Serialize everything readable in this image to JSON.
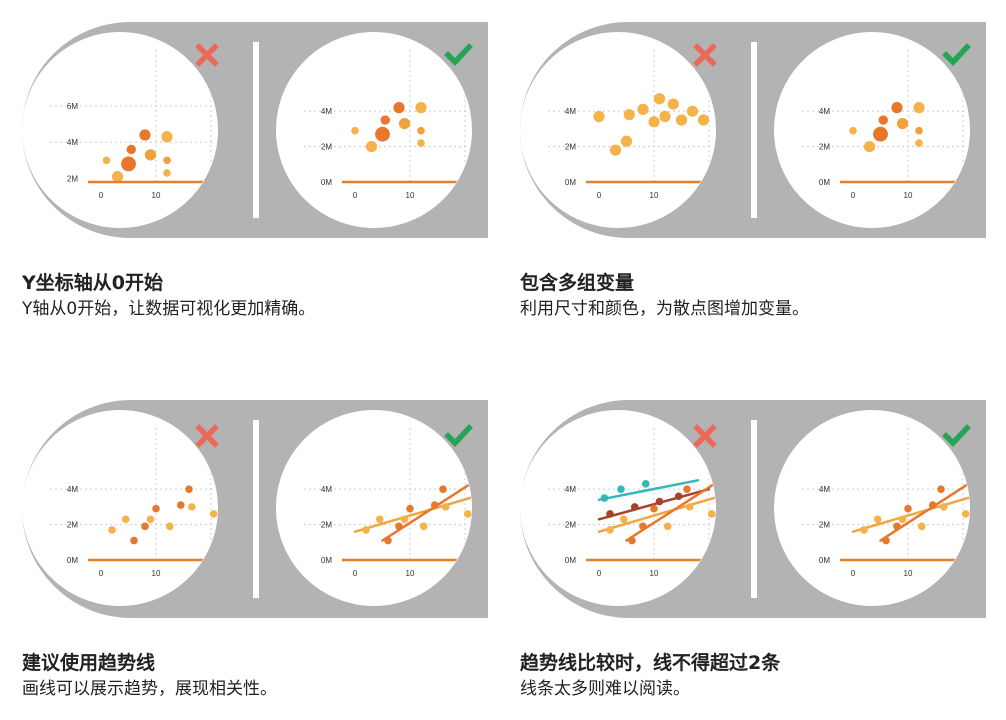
{
  "colors": {
    "frame": "#b3b3b3",
    "wrong": "#ea6a5a",
    "right": "#24a455",
    "axis": "#e57f29",
    "dotOrange": "#e8772c",
    "dotYellow": "#f2a03a",
    "dotLight": "#f4b24a",
    "lineOrange": "#e8772c",
    "lineLight": "#f2a53e",
    "lineDark": "#a8432a",
    "lineTeal": "#32b8b8",
    "grid": "#cccccc",
    "text": "#222222",
    "tick": "#333333"
  },
  "icons": {
    "wrong": "cross-icon",
    "right": "check-icon"
  },
  "panels": [
    {
      "title": "Y坐标轴从0开始",
      "desc": "Y轴从0开始，让数据可视化更加精确。",
      "left": {
        "mark": "wrong",
        "chart_data": {
          "type": "scatter",
          "ylim": [
            1.8,
            6.5
          ],
          "yticks": [
            {
              "v": 2,
              "label": "2M"
            },
            {
              "v": 4,
              "label": "4M"
            },
            {
              "v": 6,
              "label": "6M"
            }
          ],
          "xticks": [
            {
              "v": 0,
              "label": "0"
            },
            {
              "v": 10,
              "label": "10"
            }
          ],
          "points": [
            {
              "x": 1,
              "y": 3.0,
              "size": 2,
              "color": "dotLight"
            },
            {
              "x": 3,
              "y": 2.1,
              "size": 4,
              "color": "dotLight"
            },
            {
              "x": 5,
              "y": 2.8,
              "size": 6,
              "color": "dotOrange"
            },
            {
              "x": 5.5,
              "y": 3.6,
              "size": 3,
              "color": "dotOrange"
            },
            {
              "x": 8,
              "y": 4.4,
              "size": 4,
              "color": "dotOrange"
            },
            {
              "x": 9,
              "y": 3.3,
              "size": 4,
              "color": "dotYellow"
            },
            {
              "x": 12,
              "y": 4.3,
              "size": 4,
              "color": "dotLight"
            },
            {
              "x": 12,
              "y": 3.0,
              "size": 2,
              "color": "dotYellow"
            },
            {
              "x": 12,
              "y": 2.3,
              "size": 2,
              "color": "dotLight"
            }
          ],
          "lines": []
        }
      },
      "right": {
        "mark": "right",
        "chart_data": {
          "type": "scatter",
          "ylim": [
            0,
            4.8
          ],
          "yticks": [
            {
              "v": 0,
              "label": "0M"
            },
            {
              "v": 2,
              "label": "2M"
            },
            {
              "v": 4,
              "label": "4M"
            }
          ],
          "xticks": [
            {
              "v": 0,
              "label": "0"
            },
            {
              "v": 10,
              "label": "10"
            }
          ],
          "points": [
            {
              "x": 0,
              "y": 2.9,
              "size": 2,
              "color": "dotLight"
            },
            {
              "x": 3,
              "y": 2.0,
              "size": 4,
              "color": "dotLight"
            },
            {
              "x": 5,
              "y": 2.7,
              "size": 6,
              "color": "dotOrange"
            },
            {
              "x": 5.5,
              "y": 3.5,
              "size": 3,
              "color": "dotOrange"
            },
            {
              "x": 8,
              "y": 4.2,
              "size": 4,
              "color": "dotOrange"
            },
            {
              "x": 9,
              "y": 3.3,
              "size": 4,
              "color": "dotYellow"
            },
            {
              "x": 12,
              "y": 4.2,
              "size": 4,
              "color": "dotLight"
            },
            {
              "x": 12,
              "y": 2.9,
              "size": 2,
              "color": "dotYellow"
            },
            {
              "x": 12,
              "y": 2.2,
              "size": 2,
              "color": "dotLight"
            }
          ],
          "lines": []
        }
      }
    },
    {
      "title": "包含多组变量",
      "desc": "利用尺寸和颜色，为散点图增加变量。",
      "left": {
        "mark": "wrong",
        "chart_data": {
          "type": "scatter",
          "ylim": [
            0,
            4.8
          ],
          "yticks": [
            {
              "v": 0,
              "label": "0M"
            },
            {
              "v": 2,
              "label": "2M"
            },
            {
              "v": 4,
              "label": "4M"
            }
          ],
          "xticks": [
            {
              "v": 0,
              "label": "0"
            },
            {
              "v": 10,
              "label": "10"
            }
          ],
          "points": [
            {
              "x": 0,
              "y": 3.7,
              "size": 4,
              "color": "dotLight"
            },
            {
              "x": 3,
              "y": 1.8,
              "size": 4,
              "color": "dotLight"
            },
            {
              "x": 5,
              "y": 2.3,
              "size": 4,
              "color": "dotLight"
            },
            {
              "x": 5.5,
              "y": 3.8,
              "size": 4,
              "color": "dotLight"
            },
            {
              "x": 8,
              "y": 4.1,
              "size": 4,
              "color": "dotLight"
            },
            {
              "x": 10,
              "y": 3.4,
              "size": 4,
              "color": "dotLight"
            },
            {
              "x": 11,
              "y": 4.7,
              "size": 4,
              "color": "dotLight"
            },
            {
              "x": 12,
              "y": 3.7,
              "size": 4,
              "color": "dotLight"
            },
            {
              "x": 13.5,
              "y": 4.4,
              "size": 4,
              "color": "dotLight"
            },
            {
              "x": 15,
              "y": 3.5,
              "size": 4,
              "color": "dotLight"
            },
            {
              "x": 17,
              "y": 4.0,
              "size": 4,
              "color": "dotLight"
            },
            {
              "x": 19,
              "y": 3.5,
              "size": 4,
              "color": "dotLight"
            }
          ],
          "lines": []
        }
      },
      "right": {
        "mark": "right",
        "chart_data": {
          "type": "scatter",
          "ylim": [
            0,
            4.8
          ],
          "yticks": [
            {
              "v": 0,
              "label": "0M"
            },
            {
              "v": 2,
              "label": "2M"
            },
            {
              "v": 4,
              "label": "4M"
            }
          ],
          "xticks": [
            {
              "v": 0,
              "label": "0"
            },
            {
              "v": 10,
              "label": "10"
            }
          ],
          "points": [
            {
              "x": 0,
              "y": 2.9,
              "size": 2,
              "color": "dotLight"
            },
            {
              "x": 3,
              "y": 2.0,
              "size": 4,
              "color": "dotLight"
            },
            {
              "x": 5,
              "y": 2.7,
              "size": 6,
              "color": "dotOrange"
            },
            {
              "x": 5.5,
              "y": 3.5,
              "size": 3,
              "color": "dotOrange"
            },
            {
              "x": 8,
              "y": 4.2,
              "size": 4,
              "color": "dotOrange"
            },
            {
              "x": 9,
              "y": 3.3,
              "size": 4,
              "color": "dotYellow"
            },
            {
              "x": 12,
              "y": 4.2,
              "size": 4,
              "color": "dotLight"
            },
            {
              "x": 12,
              "y": 2.9,
              "size": 2,
              "color": "dotYellow"
            },
            {
              "x": 12,
              "y": 2.2,
              "size": 2,
              "color": "dotLight"
            }
          ],
          "lines": []
        }
      }
    },
    {
      "title": "建议使用趋势线",
      "desc": "画线可以展示趋势，展现相关性。",
      "left": {
        "mark": "wrong",
        "chart_data": {
          "type": "scatter",
          "ylim": [
            0,
            4.8
          ],
          "yticks": [
            {
              "v": 0,
              "label": "0M"
            },
            {
              "v": 2,
              "label": "2M"
            },
            {
              "v": 4,
              "label": "4M"
            }
          ],
          "xticks": [
            {
              "v": 0,
              "label": "0"
            },
            {
              "v": 10,
              "label": "10"
            }
          ],
          "points": [
            {
              "x": 2,
              "y": 1.7,
              "size": 2,
              "color": "dotLight"
            },
            {
              "x": 4.5,
              "y": 2.3,
              "size": 2,
              "color": "dotLight"
            },
            {
              "x": 6,
              "y": 1.1,
              "size": 2,
              "color": "dotOrange"
            },
            {
              "x": 8,
              "y": 1.9,
              "size": 2,
              "color": "dotOrange"
            },
            {
              "x": 9,
              "y": 2.3,
              "size": 2,
              "color": "dotLight"
            },
            {
              "x": 10,
              "y": 2.9,
              "size": 2,
              "color": "dotOrange"
            },
            {
              "x": 12.5,
              "y": 1.9,
              "size": 2,
              "color": "dotLight"
            },
            {
              "x": 14.5,
              "y": 3.1,
              "size": 2,
              "color": "dotOrange"
            },
            {
              "x": 16,
              "y": 4.0,
              "size": 2,
              "color": "dotOrange"
            },
            {
              "x": 16.5,
              "y": 3.0,
              "size": 2,
              "color": "dotLight"
            },
            {
              "x": 20.5,
              "y": 2.6,
              "size": 2,
              "color": "dotLight"
            }
          ],
          "lines": []
        }
      },
      "right": {
        "mark": "right",
        "chart_data": {
          "type": "scatter",
          "ylim": [
            0,
            4.8
          ],
          "yticks": [
            {
              "v": 0,
              "label": "0M"
            },
            {
              "v": 2,
              "label": "2M"
            },
            {
              "v": 4,
              "label": "4M"
            }
          ],
          "xticks": [
            {
              "v": 0,
              "label": "0"
            },
            {
              "v": 10,
              "label": "10"
            }
          ],
          "points": [
            {
              "x": 2,
              "y": 1.7,
              "size": 2,
              "color": "dotLight"
            },
            {
              "x": 4.5,
              "y": 2.3,
              "size": 2,
              "color": "dotLight"
            },
            {
              "x": 6,
              "y": 1.1,
              "size": 2,
              "color": "dotOrange"
            },
            {
              "x": 8,
              "y": 1.9,
              "size": 2,
              "color": "dotOrange"
            },
            {
              "x": 9,
              "y": 2.3,
              "size": 2,
              "color": "dotLight"
            },
            {
              "x": 10,
              "y": 2.9,
              "size": 2,
              "color": "dotOrange"
            },
            {
              "x": 12.5,
              "y": 1.9,
              "size": 2,
              "color": "dotLight"
            },
            {
              "x": 14.5,
              "y": 3.1,
              "size": 2,
              "color": "dotOrange"
            },
            {
              "x": 16,
              "y": 4.0,
              "size": 2,
              "color": "dotOrange"
            },
            {
              "x": 16.5,
              "y": 3.0,
              "size": 2,
              "color": "dotLight"
            },
            {
              "x": 20.5,
              "y": 2.6,
              "size": 2,
              "color": "dotLight"
            }
          ],
          "lines": [
            {
              "x1": 0,
              "y1": 1.6,
              "x2": 22,
              "y2": 3.6,
              "color": "lineLight"
            },
            {
              "x1": 5,
              "y1": 1.1,
              "x2": 21,
              "y2": 4.3,
              "color": "lineOrange"
            }
          ]
        }
      }
    },
    {
      "title": "趋势线比较时，线不得超过2条",
      "desc": "线条太多则难以阅读。",
      "left": {
        "mark": "wrong",
        "chart_data": {
          "type": "scatter",
          "ylim": [
            0,
            4.8
          ],
          "yticks": [
            {
              "v": 0,
              "label": "0M"
            },
            {
              "v": 2,
              "label": "2M"
            },
            {
              "v": 4,
              "label": "4M"
            }
          ],
          "xticks": [
            {
              "v": 0,
              "label": "0"
            },
            {
              "v": 10,
              "label": "10"
            }
          ],
          "points": [
            {
              "x": 1,
              "y": 3.5,
              "size": 2,
              "color": "lineTeal"
            },
            {
              "x": 4,
              "y": 4.0,
              "size": 2,
              "color": "lineTeal"
            },
            {
              "x": 8.5,
              "y": 4.3,
              "size": 2,
              "color": "lineTeal"
            },
            {
              "x": 2,
              "y": 2.6,
              "size": 2,
              "color": "lineDark"
            },
            {
              "x": 6.5,
              "y": 3.0,
              "size": 2,
              "color": "lineDark"
            },
            {
              "x": 11,
              "y": 3.3,
              "size": 2,
              "color": "lineDark"
            },
            {
              "x": 14.5,
              "y": 3.6,
              "size": 2,
              "color": "lineDark"
            },
            {
              "x": 2,
              "y": 1.7,
              "size": 2,
              "color": "dotLight"
            },
            {
              "x": 4.5,
              "y": 2.3,
              "size": 2,
              "color": "dotLight"
            },
            {
              "x": 6,
              "y": 1.1,
              "size": 2,
              "color": "dotOrange"
            },
            {
              "x": 8,
              "y": 1.9,
              "size": 2,
              "color": "dotOrange"
            },
            {
              "x": 10,
              "y": 2.9,
              "size": 2,
              "color": "dotOrange"
            },
            {
              "x": 12.5,
              "y": 1.9,
              "size": 2,
              "color": "dotLight"
            },
            {
              "x": 16,
              "y": 4.0,
              "size": 2,
              "color": "dotOrange"
            },
            {
              "x": 16.5,
              "y": 3.0,
              "size": 2,
              "color": "dotLight"
            },
            {
              "x": 20.5,
              "y": 2.6,
              "size": 2,
              "color": "dotLight"
            }
          ],
          "lines": [
            {
              "x1": 0,
              "y1": 3.4,
              "x2": 18,
              "y2": 4.5,
              "color": "lineTeal"
            },
            {
              "x1": 0,
              "y1": 2.3,
              "x2": 20,
              "y2": 4.0,
              "color": "lineDark"
            },
            {
              "x1": 0,
              "y1": 1.6,
              "x2": 22,
              "y2": 3.6,
              "color": "lineLight"
            },
            {
              "x1": 5,
              "y1": 1.1,
              "x2": 21,
              "y2": 4.3,
              "color": "lineOrange"
            }
          ]
        }
      },
      "right": {
        "mark": "right",
        "chart_data": {
          "type": "scatter",
          "ylim": [
            0,
            4.8
          ],
          "yticks": [
            {
              "v": 0,
              "label": "0M"
            },
            {
              "v": 2,
              "label": "2M"
            },
            {
              "v": 4,
              "label": "4M"
            }
          ],
          "xticks": [
            {
              "v": 0,
              "label": "0"
            },
            {
              "v": 10,
              "label": "10"
            }
          ],
          "points": [
            {
              "x": 2,
              "y": 1.7,
              "size": 2,
              "color": "dotLight"
            },
            {
              "x": 4.5,
              "y": 2.3,
              "size": 2,
              "color": "dotLight"
            },
            {
              "x": 6,
              "y": 1.1,
              "size": 2,
              "color": "dotOrange"
            },
            {
              "x": 8,
              "y": 1.9,
              "size": 2,
              "color": "dotOrange"
            },
            {
              "x": 9,
              "y": 2.3,
              "size": 2,
              "color": "dotLight"
            },
            {
              "x": 10,
              "y": 2.9,
              "size": 2,
              "color": "dotOrange"
            },
            {
              "x": 12.5,
              "y": 1.9,
              "size": 2,
              "color": "dotLight"
            },
            {
              "x": 14.5,
              "y": 3.1,
              "size": 2,
              "color": "dotOrange"
            },
            {
              "x": 16,
              "y": 4.0,
              "size": 2,
              "color": "dotOrange"
            },
            {
              "x": 16.5,
              "y": 3.0,
              "size": 2,
              "color": "dotLight"
            },
            {
              "x": 20.5,
              "y": 2.6,
              "size": 2,
              "color": "dotLight"
            }
          ],
          "lines": [
            {
              "x1": 0,
              "y1": 1.6,
              "x2": 22,
              "y2": 3.6,
              "color": "lineLight"
            },
            {
              "x1": 5,
              "y1": 1.1,
              "x2": 21,
              "y2": 4.3,
              "color": "lineOrange"
            }
          ]
        }
      }
    }
  ]
}
